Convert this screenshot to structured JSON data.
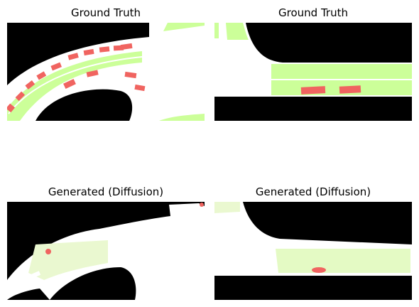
{
  "figure": {
    "panels": [
      {
        "title": "Ground Truth"
      },
      {
        "title": "Ground Truth"
      },
      {
        "title": "Generated (Diffusion)"
      },
      {
        "title": "Generated (Diffusion)"
      }
    ]
  },
  "colors": {
    "background": "#000000",
    "drivable": "#ffffff",
    "lane": "#ccff99",
    "vehicle": "#f06460"
  }
}
